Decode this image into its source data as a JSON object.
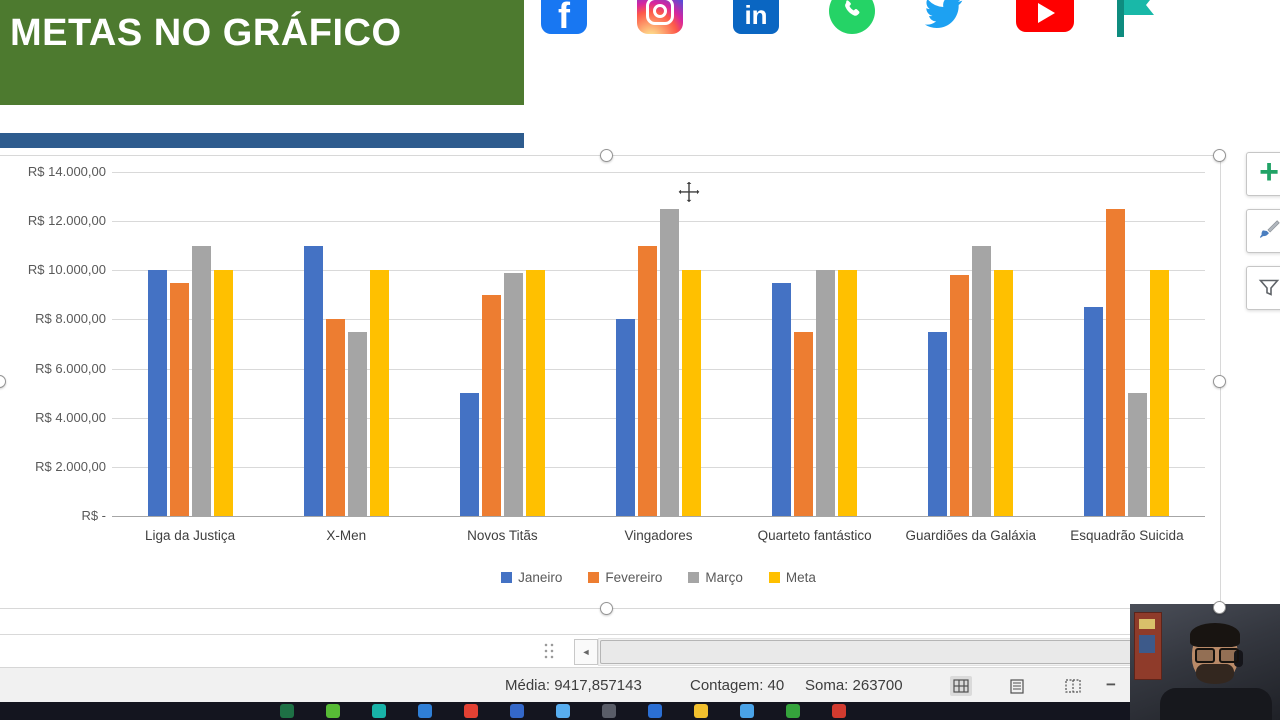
{
  "banner": {
    "title": "METAS NO GRÁFICO",
    "bg_color": "#4d7a2f",
    "accent_bar_color": "#2e5c8e"
  },
  "social": {
    "facebook_glyph": "f",
    "linkedin_glyph": "in",
    "icons": [
      "facebook",
      "instagram",
      "linkedin",
      "whatsapp",
      "twitter",
      "youtube",
      "pennant-logo"
    ]
  },
  "chart_data": {
    "type": "bar",
    "title": "",
    "categories": [
      "Liga da Justiça",
      "X-Men",
      "Novos Titãs",
      "Vingadores",
      "Quarteto fantástico",
      "Guardiões da Galáxia",
      "Esquadrão Suicida"
    ],
    "series": [
      {
        "name": "Janeiro",
        "color": "#4472C4",
        "values": [
          10000,
          11000,
          5000,
          8000,
          9500,
          7500,
          8500
        ]
      },
      {
        "name": "Fevereiro",
        "color": "#ED7D31",
        "values": [
          9500,
          8000,
          9000,
          11000,
          7500,
          9800,
          12500
        ]
      },
      {
        "name": "Março",
        "color": "#A5A5A5",
        "values": [
          11000,
          7500,
          9900,
          12500,
          10000,
          11000,
          5000
        ]
      },
      {
        "name": "Meta",
        "color": "#FFC000",
        "values": [
          10000,
          10000,
          10000,
          10000,
          10000,
          10000,
          10000
        ]
      }
    ],
    "yticks": [
      "R$ 14.000,00",
      "R$ 12.000,00",
      "R$ 10.000,00",
      "R$ 8.000,00",
      "R$ 6.000,00",
      "R$ 4.000,00",
      "R$ 2.000,00",
      "R$ -"
    ],
    "ylim": [
      0,
      14000
    ],
    "xlabel": "",
    "ylabel": "",
    "grid": true,
    "legend_position": "bottom"
  },
  "chart_tools": {
    "plus_glyph": "+",
    "buttons": [
      "chart-elements",
      "chart-styles",
      "chart-filters"
    ]
  },
  "scrollbar": {
    "left_arrow": "◄"
  },
  "status_bar": {
    "media": "Média: 9417,857143",
    "contagem": "Contagem: 40",
    "soma": "Soma: 263700",
    "zoom_minus": "−"
  },
  "taskbar": {
    "icons": [
      {
        "name": "taskbar-app-1",
        "color": "#1e7145"
      },
      {
        "name": "taskbar-app-2",
        "color": "#57bb36"
      },
      {
        "name": "taskbar-app-3",
        "color": "#18b3a8"
      },
      {
        "name": "taskbar-app-4",
        "color": "#2f7fd6"
      },
      {
        "name": "taskbar-app-5",
        "color": "#e34133"
      },
      {
        "name": "taskbar-app-6",
        "color": "#3468c9"
      },
      {
        "name": "taskbar-app-7",
        "color": "#58aef0"
      },
      {
        "name": "taskbar-app-8",
        "color": "#5a5d68"
      },
      {
        "name": "taskbar-app-9",
        "color": "#2b6fd4"
      },
      {
        "name": "taskbar-app-10",
        "color": "#f2c02e"
      },
      {
        "name": "taskbar-app-11",
        "color": "#4aa3e8"
      },
      {
        "name": "taskbar-app-12",
        "color": "#35a43c"
      },
      {
        "name": "taskbar-app-13",
        "color": "#d23b2f"
      }
    ]
  }
}
